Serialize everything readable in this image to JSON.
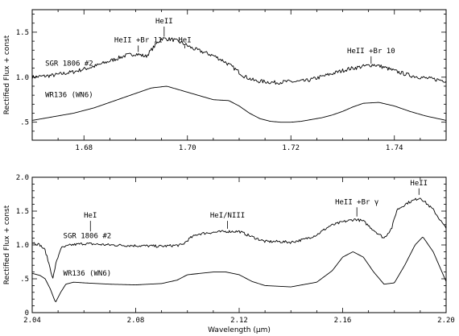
{
  "chart_data": [
    {
      "type": "line",
      "ylabel": "Rectified Flux + const",
      "xlabel": "",
      "xlim": [
        1.67,
        1.75
      ],
      "ylim": [
        0.3,
        1.75
      ],
      "xticks": [
        1.68,
        1.7,
        1.72,
        1.74
      ],
      "xtick_labels": [
        "1.68",
        "1.70",
        "1.72",
        "1.74"
      ],
      "yticks": [
        0.5,
        1.0,
        1.5
      ],
      "ytick_labels": [
        ".5",
        "1.0",
        "1.5"
      ],
      "grid": false,
      "series": [
        {
          "name": "SGR 1806 #2",
          "label_at": [
            1.6725,
            1.13
          ],
          "x": [
            1.67,
            1.674,
            1.678,
            1.682,
            1.685,
            1.688,
            1.69,
            1.692,
            1.694,
            1.695,
            1.697,
            1.699,
            1.701,
            1.703,
            1.705,
            1.707,
            1.709,
            1.711,
            1.713,
            1.715,
            1.717,
            1.719,
            1.721,
            1.723,
            1.725,
            1.728,
            1.731,
            1.734,
            1.736,
            1.738,
            1.74,
            1.743,
            1.746,
            1.75
          ],
          "y": [
            1.0,
            1.02,
            1.06,
            1.12,
            1.18,
            1.24,
            1.26,
            1.23,
            1.37,
            1.43,
            1.42,
            1.38,
            1.32,
            1.28,
            1.24,
            1.18,
            1.1,
            1.01,
            0.96,
            0.95,
            0.94,
            0.95,
            0.95,
            0.96,
            0.99,
            1.04,
            1.09,
            1.12,
            1.14,
            1.11,
            1.07,
            1.02,
            0.99,
            0.96
          ],
          "noise": 0.022
        },
        {
          "name": "WR136 (WN6)",
          "label_at": [
            1.6725,
            0.78
          ],
          "x": [
            1.67,
            1.674,
            1.678,
            1.682,
            1.686,
            1.69,
            1.693,
            1.696,
            1.699,
            1.702,
            1.705,
            1.708,
            1.71,
            1.712,
            1.714,
            1.716,
            1.718,
            1.72,
            1.722,
            1.724,
            1.726,
            1.728,
            1.73,
            1.732,
            1.734,
            1.737,
            1.74,
            1.743,
            1.746,
            1.75
          ],
          "y": [
            0.52,
            0.56,
            0.6,
            0.66,
            0.74,
            0.82,
            0.88,
            0.9,
            0.85,
            0.8,
            0.75,
            0.74,
            0.68,
            0.6,
            0.54,
            0.51,
            0.5,
            0.5,
            0.51,
            0.53,
            0.55,
            0.58,
            0.62,
            0.67,
            0.71,
            0.72,
            0.68,
            0.62,
            0.57,
            0.52
          ],
          "noise": 0.0
        }
      ],
      "annotations": [
        {
          "text": "HeII +Br 11",
          "x": 1.6905,
          "y_line": 1.28,
          "y_text": 1.37
        },
        {
          "text": "HeII",
          "x": 1.6955,
          "y_line": 1.45,
          "y_text": 1.58
        },
        {
          "text": "HeI",
          "x": 1.6995,
          "y_line": 1.32,
          "y_text": 1.37
        },
        {
          "text": "HeII +Br 10",
          "x": 1.7355,
          "y_line": 1.15,
          "y_text": 1.25
        }
      ]
    },
    {
      "type": "line",
      "ylabel": "Rectified Flux + const",
      "xlabel": "Wavelength (μm)",
      "xlim": [
        2.04,
        2.2
      ],
      "ylim": [
        0.0,
        2.0
      ],
      "xticks": [
        2.04,
        2.08,
        2.12,
        2.16,
        2.2
      ],
      "xtick_labels": [
        "2.04",
        "2.08",
        "2.12",
        "2.16",
        "2.20"
      ],
      "yticks": [
        0.0,
        0.5,
        1.0,
        1.5,
        2.0
      ],
      "ytick_labels": [
        "0",
        ".5",
        "1.0",
        "1.5",
        "2.0"
      ],
      "grid": false,
      "series": [
        {
          "name": "SGR 1806 #2",
          "label_at": [
            2.052,
            1.1
          ],
          "x": [
            2.04,
            2.043,
            2.045,
            2.047,
            2.048,
            2.049,
            2.051,
            2.055,
            2.06,
            2.07,
            2.08,
            2.09,
            2.098,
            2.101,
            2.104,
            2.108,
            2.115,
            2.12,
            2.125,
            2.13,
            2.135,
            2.14,
            2.145,
            2.15,
            2.155,
            2.16,
            2.165,
            2.168,
            2.172,
            2.176,
            2.179,
            2.181,
            2.185,
            2.19,
            2.195,
            2.2
          ],
          "y": [
            1.04,
            1.0,
            0.92,
            0.65,
            0.5,
            0.7,
            0.95,
            1.0,
            1.02,
            1.0,
            0.99,
            0.98,
            1.0,
            1.1,
            1.16,
            1.18,
            1.2,
            1.2,
            1.12,
            1.05,
            1.05,
            1.04,
            1.08,
            1.15,
            1.28,
            1.34,
            1.38,
            1.35,
            1.22,
            1.1,
            1.25,
            1.52,
            1.62,
            1.7,
            1.52,
            1.24
          ],
          "noise": 0.02
        },
        {
          "name": "WR136 (WN6)",
          "label_at": [
            2.052,
            0.55
          ],
          "x": [
            2.04,
            2.043,
            2.045,
            2.047,
            2.049,
            2.051,
            2.053,
            2.056,
            2.06,
            2.07,
            2.08,
            2.09,
            2.096,
            2.1,
            2.105,
            2.11,
            2.115,
            2.12,
            2.125,
            2.13,
            2.14,
            2.15,
            2.156,
            2.16,
            2.164,
            2.168,
            2.172,
            2.176,
            2.18,
            2.184,
            2.188,
            2.191,
            2.195,
            2.2
          ],
          "y": [
            0.58,
            0.55,
            0.5,
            0.35,
            0.15,
            0.3,
            0.42,
            0.45,
            0.44,
            0.42,
            0.41,
            0.43,
            0.48,
            0.56,
            0.58,
            0.6,
            0.6,
            0.56,
            0.46,
            0.4,
            0.38,
            0.45,
            0.62,
            0.82,
            0.9,
            0.82,
            0.6,
            0.42,
            0.44,
            0.7,
            1.0,
            1.12,
            0.9,
            0.46
          ],
          "noise": 0.0
        }
      ],
      "annotations": [
        {
          "text": "HeI",
          "x": 2.0625,
          "y_line": 1.2,
          "y_text": 1.38
        },
        {
          "text": "HeI/NIII",
          "x": 2.1155,
          "y_line": 1.24,
          "y_text": 1.38
        },
        {
          "text": "HeII +Br γ",
          "x": 2.1655,
          "y_line": 1.42,
          "y_text": 1.58
        },
        {
          "text": "HeII",
          "x": 2.1895,
          "y_line": 1.74,
          "y_text": 1.86
        }
      ]
    }
  ]
}
